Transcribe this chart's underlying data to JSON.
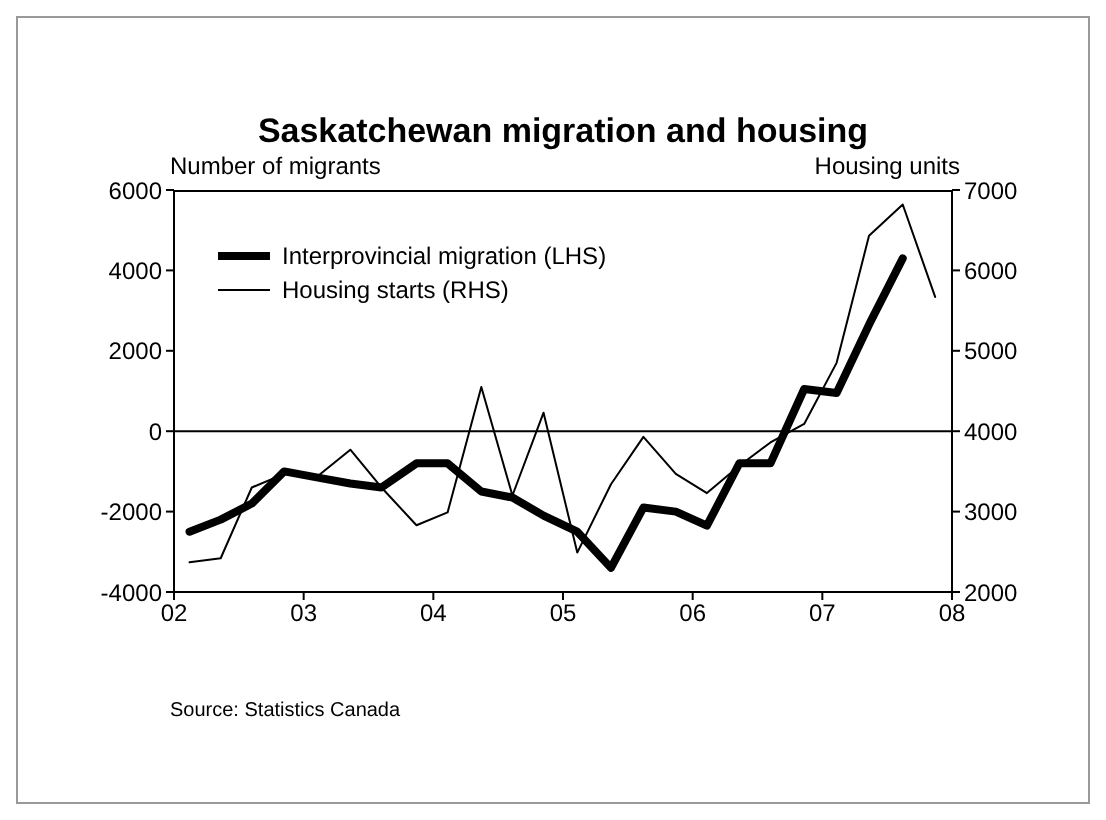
{
  "chart_data": {
    "type": "line",
    "title": "Saskatchewan migration and housing",
    "ylabel": "Number of migrants",
    "y2label": "Housing units",
    "annotations": [
      "Source: Statistics Canada"
    ],
    "xlim": [
      2002,
      2008
    ],
    "xticks": [
      {
        "value": 2002,
        "label": "02"
      },
      {
        "value": 2003,
        "label": "03"
      },
      {
        "value": 2004,
        "label": "04"
      },
      {
        "value": 2005,
        "label": "05"
      },
      {
        "value": 2006,
        "label": "06"
      },
      {
        "value": 2007,
        "label": "07"
      },
      {
        "value": 2008,
        "label": "08"
      }
    ],
    "ylim": [
      -4000,
      6000
    ],
    "yticks": [
      -4000,
      -2000,
      0,
      2000,
      4000,
      6000
    ],
    "y2lim": [
      2000,
      7000
    ],
    "y2ticks": [
      2000,
      3000,
      4000,
      5000,
      6000,
      7000
    ],
    "ref_lines": [
      {
        "axis": "y",
        "value": 0,
        "color": "#000000"
      }
    ],
    "grid": false,
    "legend": "top left",
    "marker": "none",
    "line_style": "solid",
    "series": [
      {
        "name": "Interprovincial migration (LHS)",
        "color": "#000000",
        "x": [
          2002.12,
          2002.36,
          2002.6,
          2002.85,
          2003.1,
          2003.36,
          2003.6,
          2003.87,
          2004.11,
          2004.37,
          2004.61,
          2004.85,
          2005.11,
          2005.37,
          2005.62,
          2005.87,
          2006.11,
          2006.36,
          2006.6,
          2006.86,
          2007.11,
          2007.36,
          2007.62
        ],
        "values": [
          -2500,
          -2200,
          -1800,
          -1000,
          -1150,
          -1300,
          -1400,
          -800,
          -800,
          -1500,
          -1650,
          -2100,
          -2500,
          -3400,
          -1900,
          -2000,
          -2350,
          -800,
          -800,
          1050,
          950,
          2650,
          4300
        ]
      },
      {
        "name": "Housing starts (RHS)",
        "color": "#000000",
        "axis": "y2",
        "x": [
          2002.12,
          2002.36,
          2002.6,
          2002.85,
          2003.1,
          2003.36,
          2003.6,
          2003.87,
          2004.11,
          2004.37,
          2004.61,
          2004.85,
          2005.11,
          2005.37,
          2005.62,
          2005.87,
          2006.11,
          2006.36,
          2006.6,
          2006.86,
          2007.11,
          2007.36,
          2007.62,
          2007.87
        ],
        "values": [
          2370,
          2420,
          3300,
          3470,
          3430,
          3770,
          3300,
          2830,
          2990,
          4550,
          3200,
          4230,
          2490,
          3340,
          3930,
          3470,
          3230,
          3570,
          3860,
          4090,
          4850,
          6430,
          6820,
          5670
        ]
      }
    ]
  }
}
